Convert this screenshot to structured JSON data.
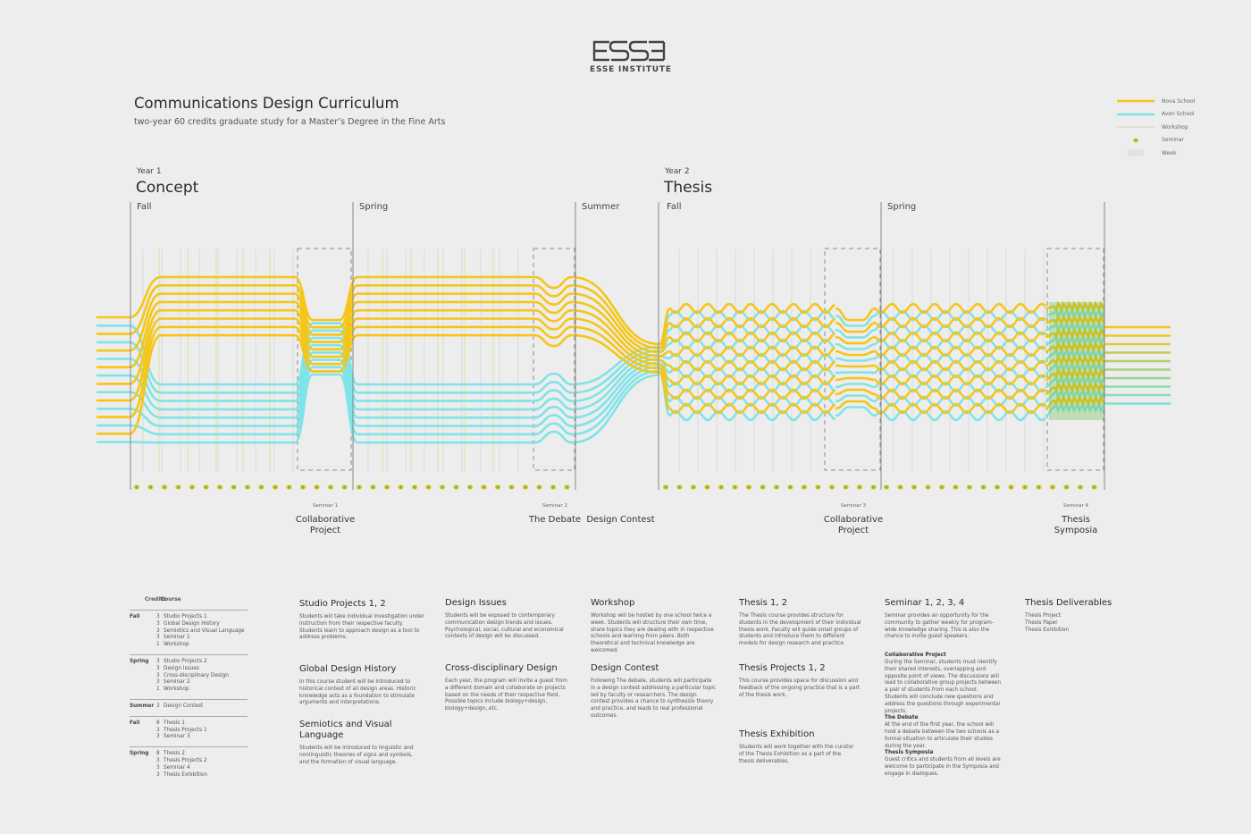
{
  "logo": {
    "mark": "ESSE",
    "name": "ESSE INSTITUTE"
  },
  "header": {
    "title": "Communications Design Curriculum",
    "subtitle": "two-year 60 credits graduate study for a Master’s Degree in the Fine Arts"
  },
  "legend": [
    {
      "label": "Nova School",
      "kind": "line",
      "color": "#f5c518"
    },
    {
      "label": "Avon School",
      "kind": "line",
      "color": "#7fe3e8"
    },
    {
      "label": "Workshop",
      "kind": "thin",
      "color": "#d4e8a0"
    },
    {
      "label": "Seminar",
      "kind": "dot",
      "color": "#6cc04a"
    },
    {
      "label": "Week",
      "kind": "box",
      "color": "#e2e2e2"
    }
  ],
  "years": [
    {
      "year": "Year 1",
      "name": "Concept"
    },
    {
      "year": "Year 2",
      "name": "Thesis"
    }
  ],
  "seasons": [
    "Fall",
    "Spring",
    "Summer",
    "Fall",
    "Spring"
  ],
  "seminars": [
    {
      "tag": "Seminar 1",
      "name": "Collaborative Project"
    },
    {
      "tag": "Seminar 2",
      "name": "The Debate"
    },
    {
      "tag": "",
      "name": "Design Contest"
    },
    {
      "tag": "Seminar 3",
      "name": "Collaborative Project"
    },
    {
      "tag": "Seminar 4",
      "name": "Thesis Symposia"
    }
  ],
  "credits_table": {
    "header": [
      "Credits",
      "Course"
    ],
    "groups": [
      {
        "term": "Fall",
        "rows": [
          [
            "3",
            "Studio Projects 1"
          ],
          [
            "3",
            "Global Design History"
          ],
          [
            "3",
            "Semiotics and Visual Language"
          ],
          [
            "3",
            "Seminar 1"
          ],
          [
            "1",
            "Workshop"
          ]
        ]
      },
      {
        "term": "Spring",
        "rows": [
          [
            "3",
            "Studio Projects 2"
          ],
          [
            "3",
            "Design Issues"
          ],
          [
            "3",
            "Cross-disciplinary Design"
          ],
          [
            "3",
            "Seminar 2"
          ],
          [
            "1",
            "Workshop"
          ]
        ]
      },
      {
        "term": "Summer",
        "rows": [
          [
            "3",
            "Design Contest"
          ]
        ]
      },
      {
        "term": "Fall",
        "rows": [
          [
            "8",
            "Thesis 1"
          ],
          [
            "3",
            "Thesis Projects 1"
          ],
          [
            "3",
            "Seminar 3"
          ]
        ]
      },
      {
        "term": "Spring",
        "rows": [
          [
            "8",
            "Thesis 2"
          ],
          [
            "3",
            "Thesis Projects 2"
          ],
          [
            "3",
            "Seminar 4"
          ],
          [
            "3",
            "Thesis Exhibition"
          ]
        ]
      }
    ]
  },
  "descriptions": {
    "studio_projects": {
      "title": "Studio Projects 1, 2",
      "text": "Students will take individual investigation under instruction from their respective faculty. Students learn to approach design as a tool to address problems."
    },
    "global_history": {
      "title": "Global Design History",
      "text": "In this course student will be introduced to historical context of all design areas. Historic knowledge acts as a foundation to stimulate arguments and interpretations."
    },
    "semiotics": {
      "title": "Semiotics and Visual Language",
      "text": "Students will be introduced to linguistic and nonlinguistic theories of signs and symbols, and the formation of visual language."
    },
    "design_issues": {
      "title": "Design Issues",
      "text": "Students will be exposed to contemporary communication design trends and issues. Psychological, social, cultural and economical contexts of design will be discussed."
    },
    "cross_disciplinary": {
      "title": "Cross-disciplinary Design",
      "text": "Each year, the program will invite a guest from a different domain and collaborate on projects based on the needs of their respective field. Possible topics include biology+design, biology+design, etc."
    },
    "workshop": {
      "title": "Workshop",
      "text": "Workshop will be hosted by one school twice a week. Students will structure their own time, share topics they are dealing with in respective schools and learning from peers. Both theoretical and technical knowledge are welcomed."
    },
    "design_contest": {
      "title": "Design Contest",
      "text": "Following The debate, students will participate in a design contest addressing a particular topic led by faculty or researchers. The design contest provides a chance to synthesize theory and practice, and leads to real professional outcomes."
    },
    "thesis": {
      "title": "Thesis 1, 2",
      "text": "The Thesis course provides structure for students in the development of their individual thesis work. Faculty will guide small groups of students and introduce them to different models for design research and practice."
    },
    "thesis_projects": {
      "title": "Thesis Projects 1, 2",
      "text": "This course provides space for discussion and feedback of the ongoing practice that is a part of the thesis work."
    },
    "thesis_exhibition": {
      "title": "Thesis Exhibition",
      "text": "Students will work together with the curator of the Thesis Exhibition as a part of the thesis deliverables."
    },
    "seminar": {
      "title": "Seminar 1, 2, 3, 4",
      "text": "Seminar provides an opportunity for the community to gather weekly for program-wide knowledge sharing. This is also the chance to invite guest speakers.",
      "sub": [
        {
          "title": "Collaborative Project",
          "text": "During the Seminar, students must identify their shared interests, overlapping and opposite point of views. The discussions will lead to collaborative group projects between a pair of students from each school. Students will conclude new questions and address the questions through experimental projects."
        },
        {
          "title": "The Debate",
          "text": "At the end of the first year, the school will hold a debate between the two schools as a formal situation to articulate their studies during the year."
        },
        {
          "title": "Thesis Symposia",
          "text": "Guest critics and students from all levels are welcome to participate in the Symposia and engage in dialogues."
        }
      ]
    },
    "deliverables": {
      "title": "Thesis Deliverables",
      "items": [
        "Thesis Project",
        "Thesis Paper",
        "Thesis Exhibition"
      ]
    }
  },
  "colors": {
    "nova": "#f5c518",
    "avon": "#7fe3e8",
    "workshop": "#d4e8a0",
    "seminar": "#6cc04a",
    "divider": "#888888",
    "dashed": "#8a8a8a"
  }
}
